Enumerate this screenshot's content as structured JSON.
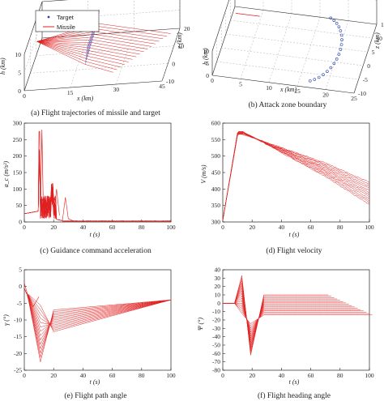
{
  "colors": {
    "missile": "#e02020",
    "target": "#2a3fb0",
    "axis": "#222222",
    "grid": "#9a9a9a"
  },
  "chart_data": [
    {
      "id": "a",
      "type": "line3d",
      "caption": "(a) Flight trajectories of missile and target",
      "xlabel": "x (km)",
      "ylabel": "h (km)",
      "zlabel": "z (km)",
      "x_ticks": [
        "0",
        "15",
        "30",
        "45"
      ],
      "h_ticks": [
        "0",
        "5",
        "10"
      ],
      "z_ticks": [
        "-10",
        "0",
        "10",
        "20"
      ],
      "legend": [
        "Target",
        "Missile"
      ]
    },
    {
      "id": "b",
      "type": "scatter3d",
      "caption": "(b) Attack zone boundary",
      "xlabel": "x (km)",
      "ylabel": "h (km)",
      "zlabel": "z (km)",
      "x_ticks": [
        "0",
        "5",
        "10",
        "15",
        "20",
        "25"
      ],
      "h_ticks": [
        "0",
        "5",
        "10"
      ],
      "z_ticks": [
        "-10",
        "-5",
        "0",
        "5",
        "10",
        "15"
      ]
    },
    {
      "id": "c",
      "type": "line",
      "caption": "(c) Guidance command acceleration",
      "xlabel": "t (s)",
      "ylabel": "a_c (m/s²)",
      "xlim": [
        0,
        100
      ],
      "ylim": [
        0,
        300
      ],
      "x_ticks": [
        0,
        20,
        40,
        60,
        80,
        100
      ],
      "y_ticks": [
        0,
        50,
        100,
        150,
        200,
        250,
        300
      ]
    },
    {
      "id": "d",
      "type": "line",
      "caption": "(d) Flight velocity",
      "xlabel": "t (s)",
      "ylabel": "V (m/s)",
      "xlim": [
        0,
        100
      ],
      "ylim": [
        300,
        600
      ],
      "x_ticks": [
        0,
        20,
        40,
        60,
        80,
        100
      ],
      "y_ticks": [
        300,
        350,
        400,
        450,
        500,
        550,
        600
      ]
    },
    {
      "id": "e",
      "type": "line",
      "caption": "(e) Flight path angle",
      "xlabel": "t (s)",
      "ylabel": "γ (°)",
      "xlim": [
        0,
        100
      ],
      "ylim": [
        -25,
        5
      ],
      "x_ticks": [
        0,
        20,
        40,
        60,
        80,
        100
      ],
      "y_ticks": [
        -25,
        -20,
        -15,
        -10,
        -5,
        0,
        5
      ]
    },
    {
      "id": "f",
      "type": "line",
      "caption": "(f) Flight heading angle",
      "xlabel": "t (s)",
      "ylabel": "Ψ (°)",
      "xlim": [
        0,
        100
      ],
      "ylim": [
        -80,
        40
      ],
      "x_ticks": [
        0,
        20,
        40,
        60,
        80,
        100
      ],
      "y_ticks": [
        -80,
        -70,
        -60,
        -50,
        -40,
        -30,
        -20,
        -10,
        0,
        10,
        20,
        30,
        40
      ]
    }
  ]
}
